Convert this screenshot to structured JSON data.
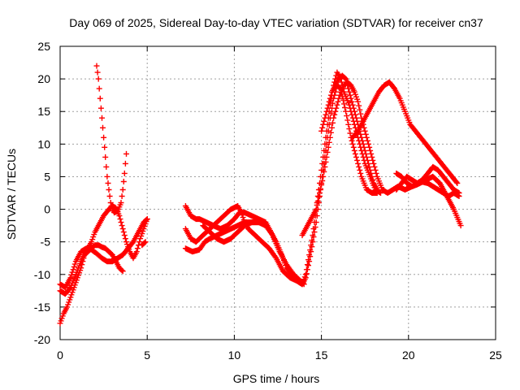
{
  "chart_data": {
    "type": "scatter",
    "title": "Day 069 of 2025, Sidereal Day-to-day VTEC variation (SDTVAR) for receiver cn37",
    "xlabel": "GPS time / hours",
    "ylabel": "SDTVAR / TECUs",
    "xlim": [
      0,
      25
    ],
    "ylim": [
      -20,
      25
    ],
    "xticks": [
      "0",
      "5",
      "10",
      "15",
      "20",
      "25"
    ],
    "yticks": [
      "-20",
      "-15",
      "-10",
      "-5",
      "0",
      "5",
      "10",
      "15",
      "20",
      "25"
    ],
    "grid": true,
    "marker": "+",
    "series_color": "#ff0000",
    "series": [
      {
        "name": "s1",
        "points": [
          [
            0,
            -17.5
          ],
          [
            0.2,
            -16
          ],
          [
            0.4,
            -15
          ],
          [
            0.6,
            -13.5
          ],
          [
            0.8,
            -12
          ],
          [
            1.0,
            -10.5
          ],
          [
            1.2,
            -9
          ],
          [
            1.4,
            -7
          ],
          [
            1.6,
            -6.5
          ],
          [
            1.8,
            -6
          ],
          [
            2.0,
            -5.5
          ],
          [
            2.2,
            -5.5
          ],
          [
            2.4,
            -5.8
          ],
          [
            2.6,
            -6
          ],
          [
            2.8,
            -6.5
          ],
          [
            3.0,
            -7
          ],
          [
            3.2,
            -8
          ],
          [
            3.4,
            -9
          ],
          [
            3.6,
            -9.5
          ]
        ]
      },
      {
        "name": "s2",
        "points": [
          [
            0,
            -12.5
          ],
          [
            0.3,
            -13
          ],
          [
            0.6,
            -12
          ],
          [
            0.9,
            -10
          ],
          [
            1.2,
            -8
          ],
          [
            1.5,
            -6.5
          ],
          [
            1.8,
            -5
          ],
          [
            2.0,
            -3.5
          ],
          [
            2.2,
            -2.5
          ],
          [
            2.5,
            -1
          ],
          [
            2.8,
            0
          ],
          [
            3.0,
            0.5
          ],
          [
            3.2,
            0.2
          ],
          [
            3.4,
            -1
          ],
          [
            3.6,
            -3
          ],
          [
            3.8,
            -5
          ],
          [
            4.0,
            -6.5
          ],
          [
            4.2,
            -7.5
          ],
          [
            4.4,
            -6.5
          ],
          [
            4.6,
            -4.5
          ],
          [
            4.8,
            -3
          ],
          [
            5.0,
            -1.5
          ]
        ]
      },
      {
        "name": "s3",
        "points": [
          [
            0,
            -11.5
          ],
          [
            0.3,
            -12
          ],
          [
            0.6,
            -10.5
          ],
          [
            0.9,
            -8
          ],
          [
            1.2,
            -6.5
          ],
          [
            1.5,
            -6
          ],
          [
            1.8,
            -6.2
          ],
          [
            2.1,
            -6.8
          ],
          [
            2.4,
            -7.5
          ],
          [
            2.7,
            -8
          ],
          [
            3.0,
            -8
          ],
          [
            3.3,
            -7.5
          ],
          [
            3.6,
            -7
          ],
          [
            3.9,
            -6
          ],
          [
            4.2,
            -5
          ],
          [
            4.5,
            -3.5
          ],
          [
            4.8,
            -2
          ],
          [
            5.0,
            -1.5
          ]
        ]
      },
      {
        "name": "s4",
        "points": [
          [
            2.1,
            22
          ],
          [
            2.2,
            20
          ],
          [
            2.3,
            17
          ],
          [
            2.4,
            14
          ],
          [
            2.5,
            11
          ],
          [
            2.6,
            8
          ],
          [
            2.7,
            5
          ],
          [
            2.8,
            3
          ],
          [
            2.9,
            1
          ],
          [
            3.0,
            0
          ],
          [
            3.1,
            -0.5
          ],
          [
            3.3,
            -0.3
          ],
          [
            3.5,
            1
          ],
          [
            3.6,
            3
          ],
          [
            3.7,
            5.5
          ],
          [
            3.8,
            8.5
          ]
        ]
      },
      {
        "name": "s5",
        "points": [
          [
            4.7,
            -5.5
          ],
          [
            4.9,
            -5
          ]
        ]
      },
      {
        "name": "s6",
        "points": [
          [
            7.2,
            0.5
          ],
          [
            7.5,
            -1
          ],
          [
            7.8,
            -1.5
          ],
          [
            8.0,
            -1.5
          ],
          [
            8.4,
            -2
          ],
          [
            8.8,
            -2.5
          ],
          [
            9.2,
            -3
          ],
          [
            9.6,
            -2.5
          ],
          [
            10.0,
            -1.5
          ],
          [
            10.3,
            -0.5
          ],
          [
            10.6,
            -0.5
          ],
          [
            11.0,
            -1
          ],
          [
            11.4,
            -1.5
          ],
          [
            11.8,
            -2
          ],
          [
            12.0,
            -3
          ],
          [
            12.4,
            -5
          ],
          [
            12.8,
            -7.5
          ],
          [
            13.0,
            -9
          ],
          [
            13.3,
            -10
          ],
          [
            13.6,
            -11
          ],
          [
            13.9,
            -11.5
          ],
          [
            14.1,
            -10
          ],
          [
            14.3,
            -7
          ],
          [
            14.5,
            -4
          ],
          [
            14.7,
            0
          ],
          [
            14.9,
            4
          ],
          [
            15.1,
            8
          ],
          [
            15.3,
            12
          ],
          [
            15.5,
            16
          ],
          [
            15.7,
            19
          ],
          [
            15.9,
            21
          ],
          [
            16.1,
            20
          ],
          [
            16.3,
            18
          ],
          [
            16.6,
            16
          ],
          [
            16.9,
            13
          ],
          [
            17.2,
            10
          ],
          [
            17.5,
            7
          ],
          [
            17.8,
            5
          ],
          [
            18.1,
            3
          ],
          [
            18.4,
            2.5
          ]
        ]
      },
      {
        "name": "s7",
        "points": [
          [
            7.2,
            -3
          ],
          [
            7.5,
            -4.5
          ],
          [
            7.8,
            -5
          ],
          [
            8.2,
            -4
          ],
          [
            8.6,
            -3
          ],
          [
            9.0,
            -2
          ],
          [
            9.4,
            -1
          ],
          [
            9.8,
            0
          ],
          [
            10.2,
            0.5
          ],
          [
            10.4,
            -0.5
          ],
          [
            10.6,
            -2
          ],
          [
            10.8,
            -3
          ],
          [
            11.2,
            -4
          ],
          [
            11.6,
            -5
          ],
          [
            12.0,
            -6
          ],
          [
            12.4,
            -7.5
          ],
          [
            12.8,
            -9.5
          ],
          [
            13.2,
            -10.5
          ],
          [
            13.6,
            -11
          ],
          [
            13.9,
            -11.5
          ],
          [
            14.1,
            -10.5
          ],
          [
            14.3,
            -8
          ],
          [
            14.5,
            -5
          ],
          [
            14.7,
            -2
          ],
          [
            14.9,
            2
          ],
          [
            15.1,
            6
          ],
          [
            15.3,
            10
          ],
          [
            15.5,
            14
          ],
          [
            15.7,
            17
          ],
          [
            15.9,
            19
          ],
          [
            16.1,
            18.5
          ],
          [
            16.4,
            15
          ],
          [
            16.7,
            11
          ],
          [
            17.0,
            8
          ],
          [
            17.3,
            5
          ],
          [
            17.6,
            3
          ],
          [
            17.9,
            2.5
          ],
          [
            18.2,
            2.5
          ]
        ]
      },
      {
        "name": "s8",
        "points": [
          [
            7.2,
            -6
          ],
          [
            7.6,
            -6.5
          ],
          [
            8.0,
            -6.2
          ],
          [
            8.3,
            -5
          ],
          [
            8.6,
            -4.5
          ],
          [
            9.0,
            -4
          ],
          [
            9.4,
            -3.5
          ],
          [
            9.8,
            -3
          ],
          [
            10.2,
            -2.5
          ],
          [
            10.6,
            -2
          ],
          [
            11.0,
            -2
          ],
          [
            11.4,
            -2
          ],
          [
            11.8,
            -2.5
          ],
          [
            12.2,
            -4
          ],
          [
            12.6,
            -6.5
          ],
          [
            13.0,
            -8.5
          ],
          [
            13.4,
            -10
          ],
          [
            13.8,
            -11
          ],
          [
            14.0,
            -11.5
          ]
        ]
      },
      {
        "name": "s9",
        "points": [
          [
            8.2,
            -2.5
          ],
          [
            8.6,
            -3.5
          ],
          [
            9.0,
            -4.5
          ],
          [
            9.4,
            -5
          ],
          [
            9.8,
            -4.5
          ],
          [
            10.2,
            -3.5
          ],
          [
            10.6,
            -2.5
          ],
          [
            11.0,
            -2
          ],
          [
            11.4,
            -2
          ]
        ]
      },
      {
        "name": "s10",
        "points": [
          [
            13.9,
            -4
          ],
          [
            14.1,
            -3
          ],
          [
            14.3,
            -2
          ],
          [
            14.5,
            -1
          ],
          [
            14.7,
            0
          ],
          [
            14.9,
            2.5
          ],
          [
            15.1,
            5
          ],
          [
            15.3,
            8
          ],
          [
            15.5,
            11
          ],
          [
            15.7,
            14
          ],
          [
            15.9,
            16
          ],
          [
            16.1,
            18
          ],
          [
            16.3,
            19
          ],
          [
            16.5,
            19.5
          ],
          [
            16.7,
            19
          ],
          [
            16.9,
            18
          ],
          [
            17.1,
            16.5
          ],
          [
            17.3,
            14
          ],
          [
            17.6,
            11
          ],
          [
            17.9,
            8
          ],
          [
            18.2,
            5
          ],
          [
            18.5,
            3
          ],
          [
            18.8,
            2.5
          ],
          [
            19.1,
            3
          ],
          [
            19.4,
            3.5
          ],
          [
            19.8,
            3
          ],
          [
            20.2,
            3.5
          ],
          [
            20.6,
            4
          ],
          [
            21.0,
            4.5
          ],
          [
            21.4,
            5
          ],
          [
            21.8,
            4
          ],
          [
            22.2,
            2
          ],
          [
            22.6,
            0
          ],
          [
            23.0,
            -2.5
          ]
        ]
      },
      {
        "name": "s11",
        "points": [
          [
            15.0,
            12
          ],
          [
            15.2,
            14
          ],
          [
            15.4,
            16
          ],
          [
            15.6,
            18
          ],
          [
            15.8,
            19
          ],
          [
            16.0,
            20
          ],
          [
            16.2,
            20.5
          ],
          [
            16.4,
            20
          ],
          [
            16.6,
            18
          ],
          [
            16.8,
            16
          ],
          [
            17.0,
            14
          ],
          [
            17.2,
            12
          ],
          [
            17.4,
            10
          ],
          [
            17.6,
            8
          ],
          [
            17.8,
            6
          ],
          [
            18.0,
            4
          ],
          [
            18.2,
            3
          ]
        ]
      },
      {
        "name": "s12",
        "points": [
          [
            16.8,
            11
          ],
          [
            17.1,
            12
          ],
          [
            17.4,
            13.5
          ],
          [
            17.7,
            15
          ],
          [
            18.0,
            16.5
          ],
          [
            18.3,
            18
          ],
          [
            18.6,
            19
          ],
          [
            18.9,
            19.5
          ],
          [
            19.2,
            18.5
          ],
          [
            19.5,
            17
          ],
          [
            19.8,
            15
          ],
          [
            20.1,
            13
          ],
          [
            20.4,
            12
          ],
          [
            20.7,
            11
          ],
          [
            21.0,
            10
          ],
          [
            21.3,
            9
          ],
          [
            21.6,
            8
          ],
          [
            21.9,
            7
          ],
          [
            22.2,
            6
          ],
          [
            22.5,
            5
          ],
          [
            22.8,
            4
          ]
        ]
      },
      {
        "name": "s13",
        "points": [
          [
            19.3,
            3
          ],
          [
            19.6,
            4
          ],
          [
            19.9,
            5
          ],
          [
            20.2,
            4.5
          ],
          [
            20.5,
            4
          ],
          [
            20.8,
            4.5
          ],
          [
            21.1,
            5.5
          ],
          [
            21.4,
            6.5
          ],
          [
            21.7,
            6
          ],
          [
            22.0,
            5
          ],
          [
            22.3,
            4
          ],
          [
            22.6,
            3
          ],
          [
            22.9,
            2.5
          ]
        ]
      },
      {
        "name": "s14",
        "points": [
          [
            19.3,
            5.5
          ],
          [
            19.6,
            5
          ],
          [
            19.9,
            4
          ],
          [
            20.2,
            3.5
          ],
          [
            20.5,
            3.8
          ],
          [
            20.8,
            4.2
          ],
          [
            21.1,
            4
          ],
          [
            21.4,
            3.5
          ],
          [
            21.7,
            3
          ],
          [
            22.0,
            2.5
          ],
          [
            22.3,
            2
          ],
          [
            22.6,
            2.5
          ],
          [
            22.9,
            2
          ]
        ]
      }
    ]
  }
}
